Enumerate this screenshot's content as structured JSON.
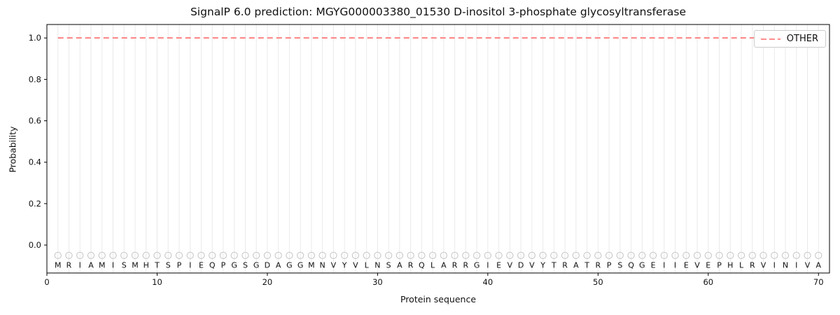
{
  "figure": {
    "background": "#ffffff"
  },
  "chart_data": {
    "type": "line",
    "title": "SignalP 6.0 prediction: MGYG000003380_01530 D-inositol 3-phosphate glycosyltransferase",
    "xlabel": "Protein sequence",
    "ylabel": "Probability",
    "xlim": [
      0,
      71
    ],
    "ylim": [
      -0.135,
      1.065
    ],
    "xticks": [
      0,
      10,
      20,
      30,
      40,
      50,
      60,
      70
    ],
    "yticks": [
      0.0,
      0.2,
      0.4,
      0.6,
      0.8,
      1.0
    ],
    "grid": {
      "vertical_per_residue": true,
      "color": "#eaeaea"
    },
    "series": [
      {
        "name": "OTHER",
        "style": "dashed",
        "color": "#ff6b6b",
        "x_start": 1,
        "x_end": 70,
        "constant_value": 1.0
      }
    ],
    "legend": {
      "position": "upper right",
      "entries": [
        {
          "label": "OTHER",
          "color": "#ff6b6b",
          "line_style": "dashed"
        }
      ]
    },
    "sequence": "MRIAMISMHTSPIEQPGSGDAGGMNVYVLNSARQLARRGIEVDVYTRATRPSQGEIIEVEPHLRVINIVA",
    "sequence_marker": {
      "shape": "open-circle",
      "y": -0.05,
      "color": "#c8c8c8"
    },
    "residue_label_y": -0.11,
    "spine_color": "#000000",
    "text_color": "#111111"
  }
}
